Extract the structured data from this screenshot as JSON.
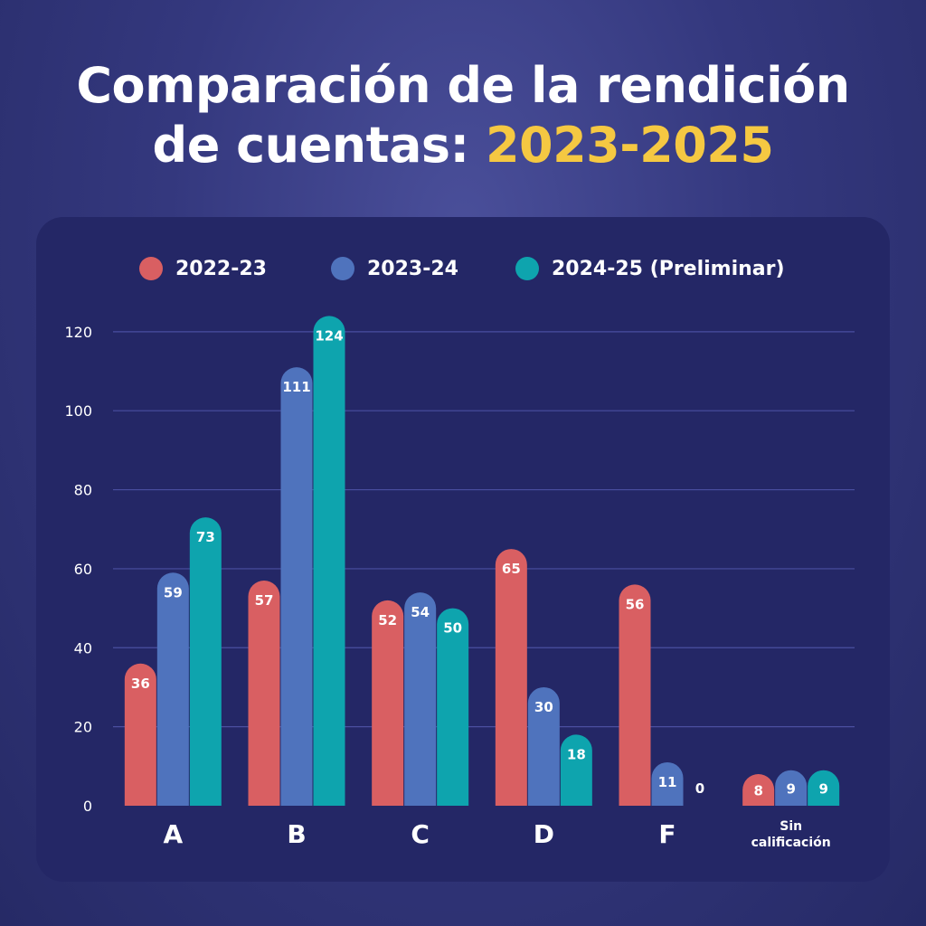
{
  "title": {
    "line1": "Comparación de la rendición",
    "line2_prefix": "de cuentas: ",
    "line2_highlight": "2023-2025"
  },
  "colors": {
    "series_2022": "#d95f62",
    "series_2023": "#4f73bd",
    "series_2024": "#0ea4ae",
    "grid": "#4a4fa0",
    "highlight": "#f5c842"
  },
  "chart_data": {
    "type": "bar",
    "title": "Comparación de la rendición de cuentas: 2023-2025",
    "categories": [
      "A",
      "B",
      "C",
      "D",
      "F",
      "Sin calificación"
    ],
    "series": [
      {
        "name": "2022-23",
        "values": [
          36,
          57,
          52,
          65,
          56,
          8
        ]
      },
      {
        "name": "2023-24",
        "values": [
          59,
          111,
          54,
          30,
          11,
          9
        ]
      },
      {
        "name": "2024-25 (Preliminar)",
        "values": [
          73,
          124,
          50,
          18,
          0,
          9
        ]
      }
    ],
    "yticks": [
      0,
      20,
      40,
      60,
      80,
      100,
      120
    ],
    "ylim": [
      0,
      125
    ],
    "xlabel": "",
    "ylabel": "",
    "grid": true,
    "legend_position": "top"
  }
}
